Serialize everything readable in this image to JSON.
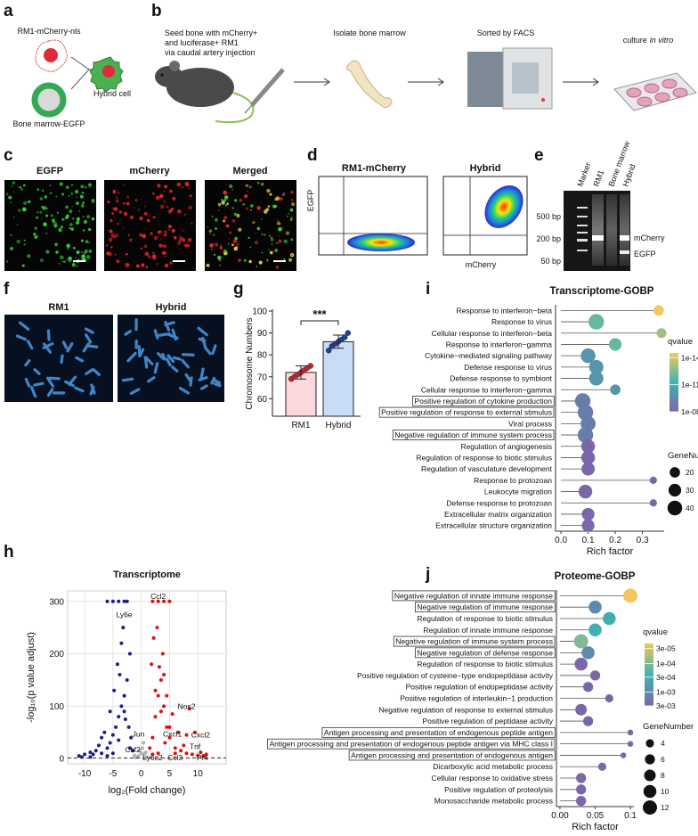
{
  "panel_labels": [
    "a",
    "b",
    "c",
    "d",
    "e",
    "f",
    "g",
    "h",
    "i",
    "j"
  ],
  "schematic_a": {
    "tumor": "RM1-mCherry-nls",
    "marrow": "Bone marrow-EGFP",
    "hybrid": "Hybrid cell"
  },
  "workflow_b": {
    "seed": [
      "Seed bone with mCherry+",
      "and luciferase+ RM1",
      "via caudal artery injection"
    ],
    "isolate": "Isolate bone marrow",
    "sort": "Sorted by FACS",
    "culture": [
      "culture",
      "in vitro"
    ]
  },
  "microscopy_c": {
    "labels": [
      "EGFP",
      "mCherry",
      "Merged"
    ]
  },
  "flow_d": {
    "titles": [
      "RM1-mCherry",
      "Hybrid"
    ],
    "ylabel": "EGFP",
    "xlabel": "mCherry"
  },
  "gel_e": {
    "lanes": [
      "Marker",
      "RM1",
      "Bone marrow",
      "Hybrid"
    ],
    "ladder": [
      "500 bp",
      "200 bp",
      "50 bp"
    ],
    "bands": [
      "mCherry",
      "EGFP"
    ]
  },
  "karyotype_f": {
    "labels": [
      "RM1",
      "Hybrid"
    ]
  },
  "chart_data": [
    {
      "type": "bar",
      "ylabel": "Chromosome Numbers",
      "categories": [
        "RM1",
        "Hybrid"
      ],
      "values": [
        72,
        86
      ],
      "errors": [
        3,
        3
      ],
      "points": [
        [
          69,
          70,
          71,
          72,
          73,
          74,
          75
        ],
        [
          82,
          84,
          85,
          86,
          87,
          88,
          90
        ]
      ],
      "colors": [
        "#f9d9dc",
        "#c9dcf5"
      ],
      "point_colors": [
        "#c0282d",
        "#1f3f8f"
      ],
      "ylim": [
        52,
        100
      ],
      "yticks": [
        60,
        70,
        80,
        90,
        100
      ],
      "annotation": "***"
    },
    {
      "type": "volcano",
      "title": "Transcriptome",
      "xlabel": "log₂(Fold change)",
      "ylabel": "-log₁₀(p value adjust)",
      "xlim": [
        -13,
        15
      ],
      "ylim": [
        -10,
        320
      ],
      "xticks": [
        -10,
        -5,
        0,
        5,
        10
      ],
      "yticks": [
        0,
        100,
        200,
        300
      ],
      "grid": true,
      "hline": 1.3,
      "groups": [
        {
          "color": "#1c1c8c",
          "x": [
            -11,
            -10,
            -9,
            -8,
            -7,
            -6,
            -5.5,
            -5,
            -4.5,
            -4,
            -3.5,
            -3,
            -2.5,
            -2,
            -5,
            -4,
            -3,
            -2.5,
            -6,
            -3.5,
            -4.2,
            -6.5,
            -7.5,
            -8.5,
            -3,
            -2.2,
            -1.8,
            -2,
            -5,
            -4,
            -6,
            -9,
            -3.2,
            -4.8,
            -5.5,
            -2.8,
            -1.5,
            -10.5,
            -7,
            -3.8
          ],
          "y": [
            5,
            8,
            12,
            15,
            10,
            20,
            30,
            45,
            60,
            80,
            100,
            120,
            150,
            200,
            300,
            300,
            300,
            300,
            300,
            220,
            180,
            50,
            25,
            8,
            90,
            60,
            40,
            20,
            10,
            35,
            5,
            3,
            250,
            130,
            90,
            75,
            15,
            3,
            40,
            160
          ]
        },
        {
          "color": "#e01010",
          "x": [
            1.5,
            2,
            2.5,
            3,
            3.5,
            4,
            4.5,
            5,
            6,
            7,
            8,
            9,
            10,
            11,
            2,
            3,
            4,
            5,
            3.2,
            3.8,
            2.2,
            4.5,
            5.5,
            6.5,
            8,
            8.5,
            9.5,
            1.8,
            2.8,
            4.2,
            3,
            2,
            6,
            7.5,
            5,
            10.5,
            11.5,
            3.5,
            2.5,
            4
          ],
          "y": [
            20,
            40,
            80,
            120,
            150,
            100,
            60,
            40,
            20,
            15,
            10,
            8,
            6,
            5,
            300,
            300,
            300,
            300,
            175,
            200,
            230,
            120,
            85,
            50,
            45,
            95,
            50,
            180,
            250,
            30,
            10,
            8,
            10,
            25,
            60,
            12,
            8,
            90,
            130,
            160
          ]
        },
        {
          "color": "#b0b0b0",
          "x": [
            -1,
            -0.5,
            0,
            0.5,
            1,
            0.2,
            -0.3,
            0.8,
            -1.2,
            0.4
          ],
          "y": [
            2,
            5,
            10,
            8,
            3,
            20,
            15,
            12,
            6,
            30
          ]
        }
      ],
      "gene_labels": [
        {
          "text": "Ccl2",
          "x": 3,
          "y": 305
        },
        {
          "text": "Ly6e",
          "x": -3,
          "y": 270
        },
        {
          "text": "Nos2",
          "x": 8,
          "y": 95
        },
        {
          "text": "Cxcl2",
          "x": 10.5,
          "y": 40
        },
        {
          "text": "Jun",
          "x": -0.5,
          "y": 42
        },
        {
          "text": "Cxcl1",
          "x": 5.5,
          "y": 42
        },
        {
          "text": "Csf2",
          "x": -1.5,
          "y": 12
        },
        {
          "text": "Ly6c2",
          "x": 2,
          "y": -3
        },
        {
          "text": "Ccl3",
          "x": 6,
          "y": -3
        },
        {
          "text": "Pf4",
          "x": 10.8,
          "y": -3
        },
        {
          "text": "Tnf",
          "x": 9.5,
          "y": 18
        }
      ]
    },
    {
      "type": "dot",
      "title": "Transcriptome-GOBP",
      "xlabel": "Rich factor",
      "terms": [
        "Response to interferon−beta",
        "Response to virus",
        "Cellular response to interferon−beta",
        "Response to interferon−gamma",
        "Cytokine−mediated signaling pathway",
        "Defense response to virus",
        "Defense response to symbiont",
        "Cellular response to interferon−gamma",
        "Positive regulation of cytokine production",
        "Positive regulation of response to external stimulus",
        "Viral process",
        "Negative regulation of immune system process",
        "Regulation of angiogenesis",
        "Regulation of response to biotic stimulus",
        "Regulation of vasculature development",
        "Response to protozoan",
        "Leukocyte migration",
        "Defense response to protozoan",
        "Extracellular matrix organization",
        "Extracellular structure organization"
      ],
      "values": [
        0.36,
        0.13,
        0.37,
        0.2,
        0.1,
        0.13,
        0.13,
        0.2,
        0.08,
        0.09,
        0.1,
        0.09,
        0.1,
        0.1,
        0.1,
        0.34,
        0.09,
        0.34,
        0.1,
        0.1
      ],
      "qvalues": [
        3e-15,
        1e-12,
        1e-13,
        1e-12,
        1e-10,
        1e-10,
        1e-10,
        1e-10,
        1e-09,
        1e-09,
        1e-09,
        1e-09,
        1e-08,
        1e-08,
        1e-08,
        1e-08,
        1e-08,
        1e-08,
        1e-08,
        1e-08
      ],
      "gene_numbers": [
        20,
        45,
        18,
        30,
        40,
        38,
        38,
        20,
        45,
        45,
        42,
        45,
        35,
        35,
        33,
        10,
        35,
        10,
        30,
        30
      ],
      "boxed": [
        8,
        9,
        11
      ],
      "xlim": [
        -0.02,
        0.38
      ],
      "xticks": [
        {
          "value": 0,
          "label": "0.0"
        },
        0.1,
        0.2,
        0.3
      ],
      "color_title": "qvalue",
      "qlim": [
        3e-15,
        1e-08
      ],
      "qticks": [
        {
          "value": 1e-14,
          "label": "1e-14"
        },
        {
          "value": 1e-11,
          "label": "1e-11"
        },
        {
          "value": 1e-08,
          "label": "1e-08"
        }
      ],
      "colormap": [
        "#f2c75c",
        "#3db5b0",
        "#7b66a8"
      ],
      "size_title": "GeneNumber",
      "size_ticks": [
        20,
        30,
        40
      ]
    },
    {
      "type": "dot",
      "title": "Proteome-GOBP",
      "xlabel": "Rich factor",
      "terms": [
        "Negative regulation of innate immune response",
        "Negative regulation of immune response",
        "Regulation of response to biotic stimulus",
        "Regulation of innate immune response",
        "Negative regulation of immune system process",
        "Negative regulation of defense response",
        "Regulation of response to biotic stimulus",
        "Positive regulation of cysteine−type endopeptidase activity",
        "Positive regulation of endopeptidase activity",
        "Positive regulation of interleukin−1 production",
        "Negative regulation of response to external stimulus",
        "Positive regulation of peptidase activity",
        "Antigen processing and presentation of endogenous peptide antigen",
        "Antigen processing and presentation of endogenous peptide antigen via MHC class I",
        "Antigen processing and presentation of endogenous antigen",
        "Dicarboxylic acid metabolic process",
        "Cellular response to oxidative stress",
        "Positive regulation of proteolysis",
        "Monosaccharide metabolic process"
      ],
      "values": [
        0.1,
        0.05,
        0.07,
        0.05,
        0.03,
        0.04,
        0.03,
        0.05,
        0.04,
        0.07,
        0.03,
        0.04,
        0.1,
        0.1,
        0.09,
        0.06,
        0.03,
        0.03,
        0.03
      ],
      "qvalues": [
        2e-05,
        0.001,
        0.0003,
        0.0003,
        0.0001,
        0.001,
        0.003,
        0.003,
        0.003,
        0.003,
        0.003,
        0.003,
        0.003,
        0.003,
        0.003,
        0.003,
        0.003,
        0.003,
        0.003
      ],
      "gene_numbers": [
        12,
        10,
        10,
        10,
        12,
        10,
        10,
        6,
        6,
        4,
        8,
        6,
        2,
        2,
        2,
        4,
        6,
        6,
        6
      ],
      "boxed": [
        0,
        1,
        4,
        5,
        12,
        13,
        14
      ],
      "xlim": [
        -0.005,
        0.105
      ],
      "xticks": [
        {
          "value": 0,
          "label": "0.00"
        },
        0.05,
        0.1
      ],
      "color_title": "qvalue",
      "qlim": [
        2e-05,
        0.003
      ],
      "qticks": [
        {
          "value": 3e-05,
          "label": "3e-05"
        },
        {
          "value": 0.0001,
          "label": "1e-04"
        },
        {
          "value": 0.0003,
          "label": "3e-04"
        },
        {
          "value": 0.001,
          "label": "1e-03"
        },
        {
          "value": 0.003,
          "label": "3e-03"
        }
      ],
      "colormap": [
        "#f2c75c",
        "#3db5b0",
        "#7b66a8"
      ],
      "size_title": "GeneNumber",
      "size_ticks": [
        4,
        6,
        8,
        10,
        12
      ]
    }
  ]
}
